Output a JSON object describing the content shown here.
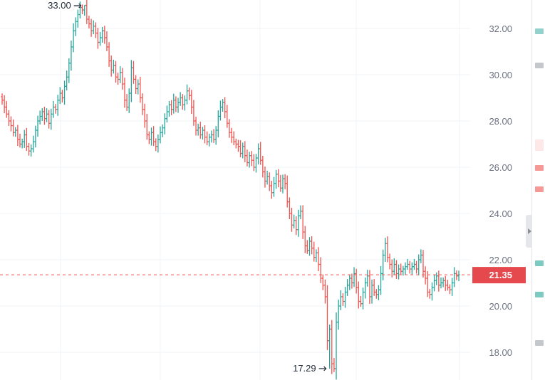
{
  "colors": {
    "up": "#26a69a",
    "down": "#ef5350",
    "grid": "#f0f3f5",
    "axis_text": "#6b7280",
    "price_line": "#ef5350",
    "price_label_bg": "#e5484d"
  },
  "chart_data": {
    "type": "candlestick",
    "ylim": [
      17.0,
      33.2
    ],
    "yticks": [
      {
        "value": 18.0,
        "label": "18.00"
      },
      {
        "value": 20.0,
        "label": "20.00"
      },
      {
        "value": 22.0,
        "label": "22.00"
      },
      {
        "value": 24.0,
        "label": "24.00"
      },
      {
        "value": 26.0,
        "label": "26.00"
      },
      {
        "value": 28.0,
        "label": "28.00"
      },
      {
        "value": 30.0,
        "label": "30.00"
      },
      {
        "value": 32.0,
        "label": "32.00"
      }
    ],
    "current_price": {
      "value": 21.35,
      "label": "21.35"
    },
    "high_marker": {
      "value": 33.0,
      "label": "33.00",
      "index": 37
    },
    "low_marker": {
      "value": 17.29,
      "label": "17.29",
      "index": 147
    },
    "grid": true,
    "close_values": [
      28.9,
      28.6,
      28.3,
      28.0,
      27.8,
      27.5,
      27.6,
      27.2,
      27.0,
      27.1,
      27.4,
      26.9,
      26.7,
      26.8,
      27.1,
      27.6,
      28.0,
      28.2,
      28.4,
      28.1,
      28.3,
      27.9,
      28.3,
      28.6,
      28.5,
      28.9,
      29.2,
      29.0,
      29.5,
      29.9,
      30.5,
      31.2,
      31.9,
      32.3,
      32.6,
      32.9,
      32.8,
      33.0,
      32.4,
      32.2,
      31.9,
      32.1,
      31.8,
      31.4,
      31.6,
      31.9,
      31.6,
      31.2,
      30.6,
      30.2,
      30.4,
      29.9,
      29.8,
      30.1,
      29.6,
      28.9,
      28.6,
      29.2,
      30.3,
      29.8,
      29.4,
      29.6,
      29.0,
      28.5,
      28.0,
      27.4,
      27.2,
      27.5,
      27.1,
      26.9,
      27.2,
      27.5,
      27.7,
      28.1,
      28.4,
      28.7,
      28.5,
      28.9,
      28.6,
      28.8,
      29.0,
      28.7,
      28.9,
      29.3,
      29.1,
      28.6,
      28.0,
      27.6,
      27.7,
      27.4,
      27.6,
      27.3,
      27.1,
      27.3,
      27.4,
      27.2,
      27.6,
      28.2,
      28.6,
      28.8,
      28.4,
      27.9,
      27.5,
      27.3,
      27.1,
      27.0,
      26.9,
      26.6,
      26.9,
      26.5,
      26.2,
      26.5,
      26.3,
      26.0,
      26.4,
      26.8,
      26.3,
      25.8,
      25.4,
      25.6,
      25.2,
      24.9,
      25.3,
      25.7,
      25.4,
      25.1,
      25.5,
      25.3,
      24.5,
      24.0,
      23.5,
      23.7,
      23.3,
      23.9,
      24.1,
      23.2,
      22.6,
      22.4,
      22.8,
      22.5,
      22.1,
      22.3,
      21.8,
      21.2,
      20.9,
      20.4,
      18.5,
      19.0,
      17.5,
      17.29,
      19.3,
      20.0,
      20.4,
      20.2,
      20.6,
      20.9,
      21.2,
      21.0,
      21.4,
      20.8,
      20.2,
      20.1,
      20.6,
      21.0,
      21.3,
      20.4,
      20.9,
      20.6,
      20.5,
      20.7,
      21.4,
      22.2,
      22.7,
      22.1,
      21.8,
      21.5,
      21.8,
      21.4,
      21.6,
      21.5,
      21.6,
      21.7,
      21.8,
      21.6,
      21.7,
      21.8,
      21.6,
      22.0,
      22.2,
      21.5,
      21.2,
      20.6,
      20.5,
      20.8,
      21.1,
      21.3,
      20.9,
      21.0,
      21.1,
      20.9,
      20.8,
      20.7,
      21.0,
      21.4,
      21.3,
      21.35
    ]
  }
}
